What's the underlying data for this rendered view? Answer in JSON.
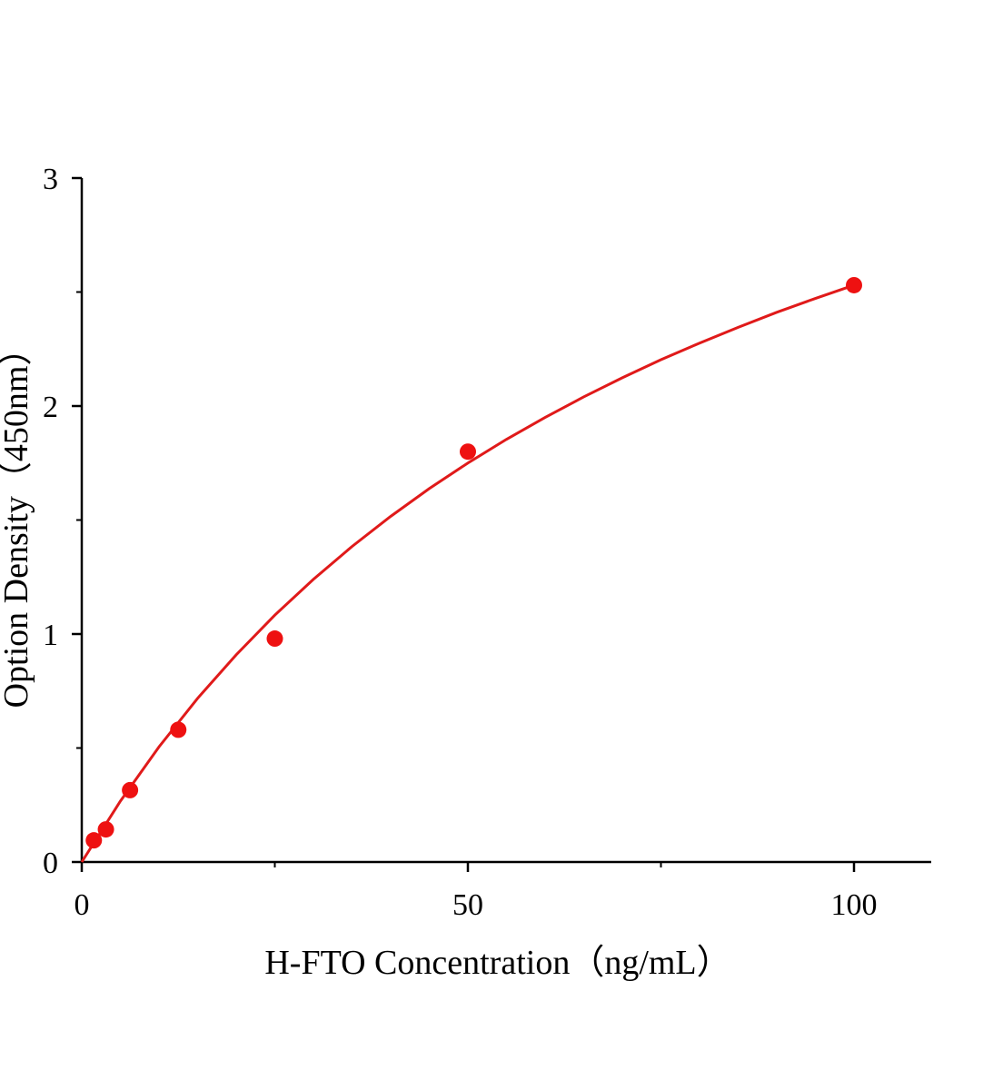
{
  "chart_data": {
    "type": "scatter",
    "x_label": "H-FTO Concentration（ng/mL）",
    "y_label": "Option Density（450nm）",
    "xlim": [
      0,
      110
    ],
    "ylim": [
      0,
      3
    ],
    "xticks": [
      0,
      50,
      100
    ],
    "yticks": [
      0,
      1,
      2,
      3
    ],
    "xminorticks": [
      25,
      75
    ],
    "yminorticks": [
      0.5,
      1.5,
      2.5
    ],
    "color": "#ee1111",
    "x": [
      1.5625,
      3.125,
      6.25,
      12.5,
      25,
      50,
      100
    ],
    "values": [
      0.095,
      0.143,
      0.315,
      0.58,
      0.98,
      1.8,
      2.53
    ],
    "fit": {
      "color": "#e01a1a",
      "x": [
        0,
        5,
        10,
        15,
        20,
        25,
        30,
        35,
        40,
        45,
        50,
        55,
        60,
        65,
        70,
        75,
        80,
        85,
        90,
        95,
        100
      ],
      "y": [
        0,
        0.267,
        0.505,
        0.718,
        0.909,
        1.083,
        1.24,
        1.384,
        1.516,
        1.638,
        1.75,
        1.854,
        1.95,
        2.04,
        2.124,
        2.203,
        2.276,
        2.345,
        2.411,
        2.472,
        2.53
      ]
    }
  }
}
